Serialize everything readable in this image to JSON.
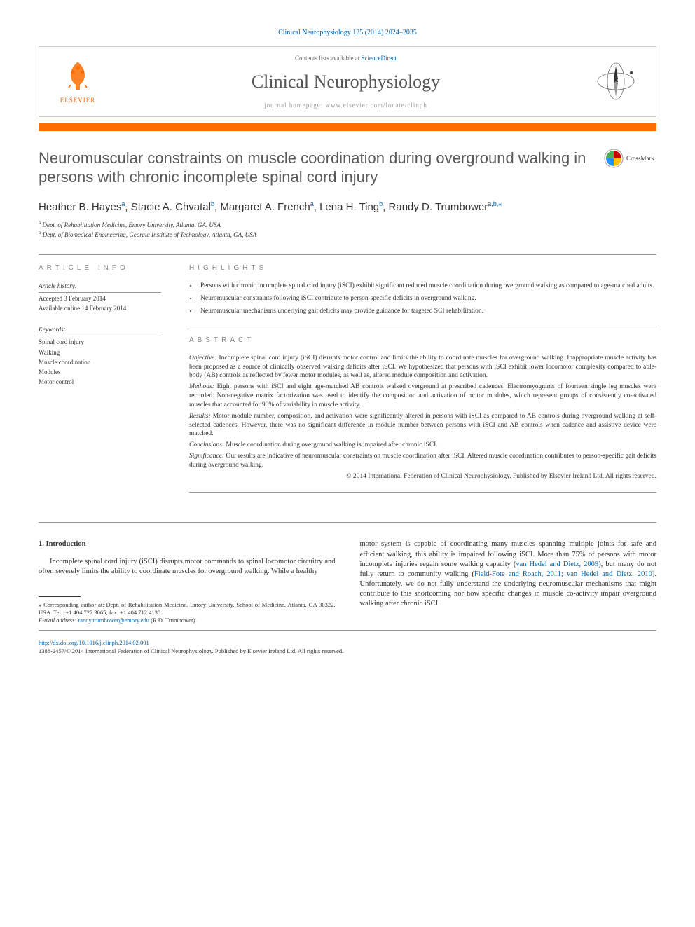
{
  "citation": "Clinical Neurophysiology 125 (2014) 2024–2035",
  "header": {
    "contents_prefix": "Contents lists available at ",
    "contents_link": "ScienceDirect",
    "journal": "Clinical Neurophysiology",
    "homepage_prefix": "journal homepage: ",
    "homepage_url": "www.elsevier.com/locate/clinph",
    "publisher_logo_text": "ELSEVIER"
  },
  "crossmark": {
    "label": "CrossMark"
  },
  "title": "Neuromuscular constraints on muscle coordination during overground walking in persons with chronic incomplete spinal cord injury",
  "authors": [
    {
      "name": "Heather B. Hayes",
      "aff": "a"
    },
    {
      "name": "Stacie A. Chvatal",
      "aff": "b"
    },
    {
      "name": "Margaret A. French",
      "aff": "a"
    },
    {
      "name": "Lena H. Ting",
      "aff": "b"
    },
    {
      "name": "Randy D. Trumbower",
      "aff": "a,b,",
      "corr": true
    }
  ],
  "affiliations": [
    {
      "sup": "a",
      "text": "Dept. of Rehabilitation Medicine, Emory University, Atlanta, GA, USA"
    },
    {
      "sup": "b",
      "text": "Dept. of Biomedical Engineering, Georgia Institute of Technology, Atlanta, GA, USA"
    }
  ],
  "info": {
    "section_head": "ARTICLE INFO",
    "history_label": "Article history:",
    "accepted": "Accepted 3 February 2014",
    "online": "Available online 14 February 2014",
    "kw_label": "Keywords:",
    "keywords": [
      "Spinal cord injury",
      "Walking",
      "Muscle coordination",
      "Modules",
      "Motor control"
    ]
  },
  "highlights": {
    "head": "HIGHLIGHTS",
    "items": [
      "Persons with chronic incomplete spinal cord injury (iSCI) exhibit significant reduced muscle coordination during overground walking as compared to age-matched adults.",
      "Neuromuscular constraints following iSCI contribute to person-specific deficits in overground walking.",
      "Neuromuscular mechanisms underlying gait deficits may provide guidance for targeted SCI rehabilitation."
    ]
  },
  "abstract": {
    "head": "ABSTRACT",
    "objective_label": "Objective:",
    "objective": " Incomplete spinal cord injury (iSCI) disrupts motor control and limits the ability to coordinate muscles for overground walking. Inappropriate muscle activity has been proposed as a source of clinically observed walking deficits after iSCI. We hypothesized that persons with iSCI exhibit lower locomotor complexity compared to able-body (AB) controls as reflected by fewer motor modules, as well as, altered module composition and activation.",
    "methods_label": "Methods:",
    "methods": " Eight persons with iSCI and eight age-matched AB controls walked overground at prescribed cadences. Electromyograms of fourteen single leg muscles were recorded. Non-negative matrix factorization was used to identify the composition and activation of motor modules, which represent groups of consistently co-activated muscles that accounted for 90% of variability in muscle activity.",
    "results_label": "Results:",
    "results": " Motor module number, composition, and activation were significantly altered in persons with iSCI as compared to AB controls during overground walking at self-selected cadences. However, there was no significant difference in module number between persons with iSCI and AB controls when cadence and assistive device were matched.",
    "conclusions_label": "Conclusions:",
    "conclusions": " Muscle coordination during overground walking is impaired after chronic iSCI.",
    "significance_label": "Significance:",
    "significance": " Our results are indicative of neuromuscular constraints on muscle coordination after iSCI. Altered muscle coordination contributes to person-specific gait deficits during overground walking.",
    "copyright": "© 2014 International Federation of Clinical Neurophysiology. Published by Elsevier Ireland Ltd. All rights reserved."
  },
  "body": {
    "sec_num": "1.",
    "sec_title": "Introduction",
    "col1": "Incomplete spinal cord injury (iSCI) disrupts motor commands to spinal locomotor circuitry and often severely limits the ability to coordinate muscles for overground walking. While a healthy",
    "col2_p1": "motor system is capable of coordinating many muscles spanning multiple joints for safe and efficient walking, this ability is impaired following iSCI. More than 75% of persons with motor incomplete injuries regain some walking capacity (",
    "cite1": "van Hedel and Dietz, 2009",
    "col2_p2": "), but many do not fully return to community walking (",
    "cite2": "Field-Fote and Roach, 2011; van Hedel and Dietz, 2010",
    "col2_p3": "). Unfortunately, we do not fully understand the underlying neuromuscular mechanisms that might contribute to this shortcoming nor how specific changes in muscle co-activity impair overground walking after chronic iSCI."
  },
  "corr": {
    "marker": "⁎",
    "label": " Corresponding author at: Dept. of Rehabilitation Medicine, Emory University, School of Medicine, Atlanta, GA 30322, USA. Tel.: +1 404 727 3065; fax: +1 404 712 4130.",
    "email_label": "E-mail address: ",
    "email": "randy.trumbower@emory.edu",
    "email_suffix": " (R.D. Trumbower)."
  },
  "footer": {
    "doi": "http://dx.doi.org/10.1016/j.clinph.2014.02.001",
    "issn": "1388-2457/© 2014 International Federation of Clinical Neurophysiology. Published by Elsevier Ireland Ltd. All rights reserved."
  },
  "colors": {
    "link": "#0066b3",
    "orange": "#ff6c00",
    "text": "#333333",
    "muted": "#888888"
  }
}
